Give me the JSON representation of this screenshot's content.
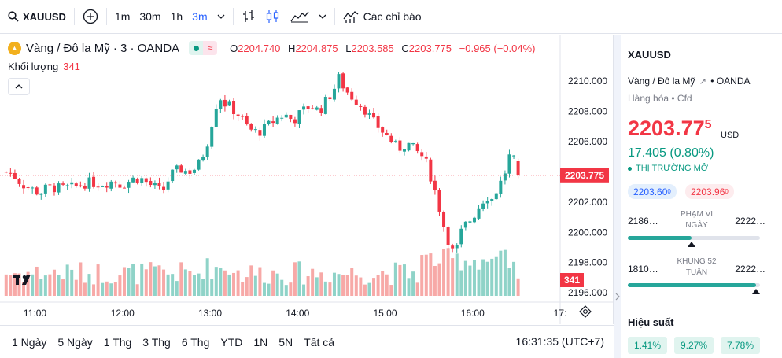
{
  "toolbar": {
    "symbol": "XAUUSD",
    "intervals": [
      "1m",
      "30m",
      "1h",
      "3m"
    ],
    "active_interval": "3m",
    "indicators_label": "Các chỉ báo"
  },
  "legend": {
    "title": "Vàng / Đô la Mỹ · 3 · OANDA",
    "open_key": "O",
    "open": "2204.740",
    "high_key": "H",
    "high": "2204.875",
    "low_key": "L",
    "low": "2203.585",
    "close_key": "C",
    "close": "2203.775",
    "change": "−0.965 (−0.04%)"
  },
  "volume": {
    "label": "Khối lượng",
    "value": "341"
  },
  "chart_data": {
    "type": "candlestick",
    "price_ticks": [
      "2210.000",
      "2208.000",
      "2206.000",
      "2204.000",
      "2202.000",
      "2200.000",
      "2198.000",
      "2196.000"
    ],
    "ylim": [
      2195.8,
      2211.0
    ],
    "time_ticks": [
      "11:00",
      "12:00",
      "13:00",
      "14:00",
      "15:00",
      "16:00",
      "17:"
    ],
    "current_price": 2203.775,
    "current_price_label": "2203.775",
    "current_volume_label": "341",
    "colors": {
      "up": "#26a69a",
      "down": "#f23645",
      "vol_up": "#8fd3c8",
      "vol_down": "#f7a9a7"
    },
    "close_path": [
      [
        10.67,
        2204.0
      ],
      [
        10.75,
        2203.8
      ],
      [
        10.85,
        2203.2
      ],
      [
        10.95,
        2202.9
      ],
      [
        11.05,
        2202.6
      ],
      [
        11.15,
        2203.0
      ],
      [
        11.3,
        2202.9
      ],
      [
        11.45,
        2203.0
      ],
      [
        11.6,
        2203.3
      ],
      [
        11.75,
        2203.2
      ],
      [
        11.9,
        2203.4
      ],
      [
        12.0,
        2203.1
      ],
      [
        12.1,
        2203.5
      ],
      [
        12.2,
        2203.6
      ],
      [
        12.3,
        2203.2
      ],
      [
        12.4,
        2202.9
      ],
      [
        12.45,
        2202.6
      ],
      [
        12.55,
        2203.8
      ],
      [
        12.65,
        2204.2
      ],
      [
        12.75,
        2204.0
      ],
      [
        12.85,
        2204.3
      ],
      [
        12.95,
        2205.5
      ],
      [
        13.0,
        2206.7
      ],
      [
        13.05,
        2208.0
      ],
      [
        13.1,
        2209.1
      ],
      [
        13.15,
        2208.6
      ],
      [
        13.25,
        2208.2
      ],
      [
        13.35,
        2207.6
      ],
      [
        13.45,
        2206.8
      ],
      [
        13.55,
        2206.6
      ],
      [
        13.65,
        2207.0
      ],
      [
        13.75,
        2207.5
      ],
      [
        13.85,
        2207.8
      ],
      [
        13.95,
        2207.4
      ],
      [
        14.05,
        2208.0
      ],
      [
        14.15,
        2208.4
      ],
      [
        14.25,
        2208.0
      ],
      [
        14.3,
        2208.5
      ],
      [
        14.4,
        2209.3
      ],
      [
        14.47,
        2210.2
      ],
      [
        14.55,
        2209.4
      ],
      [
        14.65,
        2208.8
      ],
      [
        14.75,
        2208.3
      ],
      [
        14.85,
        2207.4
      ],
      [
        14.95,
        2206.8
      ],
      [
        15.05,
        2206.2
      ],
      [
        15.15,
        2205.5
      ],
      [
        15.25,
        2205.9
      ],
      [
        15.35,
        2205.4
      ],
      [
        15.45,
        2204.9
      ],
      [
        15.55,
        2203.2
      ],
      [
        15.62,
        2201.6
      ],
      [
        15.68,
        2200.2
      ],
      [
        15.75,
        2199.0
      ],
      [
        15.8,
        2198.4
      ],
      [
        15.85,
        2199.8
      ],
      [
        15.92,
        2200.5
      ],
      [
        16.0,
        2201.0
      ],
      [
        16.08,
        2201.8
      ],
      [
        16.15,
        2202.4
      ],
      [
        16.22,
        2202.2
      ],
      [
        16.3,
        2203.1
      ],
      [
        16.35,
        2203.6
      ],
      [
        16.42,
        2205.0
      ],
      [
        16.48,
        2204.7
      ],
      [
        16.53,
        2203.8
      ]
    ],
    "volume_max": 650
  },
  "right_panel": {
    "symbol": "XAUUSD",
    "desc": "Vàng / Đô la Mỹ",
    "exchange": "OANDA",
    "type": "Hàng hóa",
    "type2": "Cfd",
    "price_main": "2203.77",
    "price_sup": "5",
    "currency": "USD",
    "change": "17.405 (0.80%)",
    "market_status": "THỊ TRƯỜNG MỞ",
    "bid": "2203.60",
    "bid_sup": "0",
    "ask": "2203.96",
    "ask_sup": "0",
    "day_range": {
      "low": "2186…",
      "label_1": "PHẠM VI",
      "label_2": "NGÀY",
      "high": "2222…",
      "position": 0.48
    },
    "week52_range": {
      "low": "1810…",
      "label_1": "KHUNG 52",
      "label_2": "TUẦN",
      "high": "2222…",
      "position": 0.97
    },
    "performance_title": "Hiệu suất",
    "performance": [
      "1.41%",
      "9.27%",
      "7.78%"
    ]
  },
  "bottom": {
    "ranges": [
      "1 Ngày",
      "5 Ngày",
      "1 Thg",
      "3 Thg",
      "6 Thg",
      "YTD",
      "1N",
      "5N",
      "Tất cả"
    ],
    "clock": "16:31:35 (UTC+7)"
  }
}
